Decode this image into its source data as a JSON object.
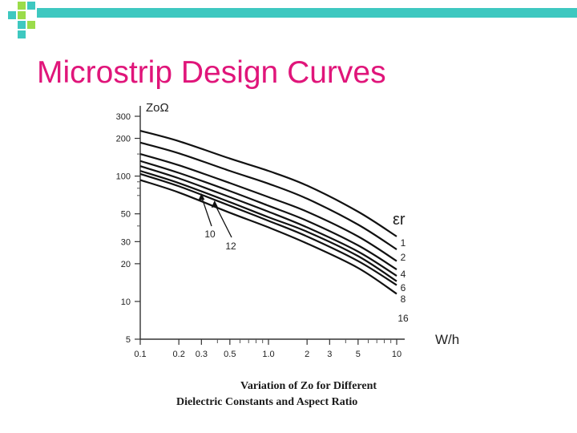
{
  "slide": {
    "title": "Microstrip Design Curves",
    "title_color": "#e0157a",
    "bar_color": "#3ec8c0",
    "deco_colors": [
      "#9bdc4a",
      "#3ec8c0"
    ]
  },
  "chart_data": {
    "type": "line",
    "x_axis_label": "W/h",
    "y_axis_label": "ZoΩ",
    "x_scale": "log",
    "y_scale": "log",
    "xlim": [
      0.1,
      10
    ],
    "ylim": [
      5,
      300
    ],
    "x_ticks": [
      {
        "value": 0.1,
        "label": "0.1"
      },
      {
        "value": 0.2,
        "label": "0.2"
      },
      {
        "value": 0.3,
        "label": "0.3"
      },
      {
        "value": 0.5,
        "label": "0.5"
      },
      {
        "value": 1.0,
        "label": "1.0"
      },
      {
        "value": 2,
        "label": "2"
      },
      {
        "value": 3,
        "label": "3"
      },
      {
        "value": 5,
        "label": "5"
      },
      {
        "value": 10,
        "label": "10"
      }
    ],
    "y_ticks": [
      {
        "value": 300,
        "label": "300"
      },
      {
        "value": 200,
        "label": "200"
      },
      {
        "value": 100,
        "label": "100"
      },
      {
        "value": 50,
        "label": "50"
      },
      {
        "value": 30,
        "label": "30"
      },
      {
        "value": 20,
        "label": "20"
      },
      {
        "value": 10,
        "label": "10"
      },
      {
        "value": 5,
        "label": "5"
      }
    ],
    "legend_title": "εr",
    "x": [
      0.1,
      0.2,
      0.5,
      1.0,
      2,
      5,
      10
    ],
    "series": [
      {
        "name": "1",
        "values": [
          230,
          190,
          138,
          110,
          84,
          52,
          33
        ]
      },
      {
        "name": "2",
        "values": [
          185,
          152,
          110,
          87,
          66,
          41,
          26
        ]
      },
      {
        "name": "4",
        "values": [
          150,
          122,
          88,
          68,
          52,
          33,
          21
        ]
      },
      {
        "name": "6",
        "values": [
          132,
          106,
          76,
          58,
          44,
          28,
          18
        ]
      },
      {
        "name": "8",
        "values": [
          120,
          96,
          68,
          52,
          39,
          25,
          16
        ]
      },
      {
        "name": "10",
        "values": [
          110,
          88,
          62,
          47,
          36,
          23,
          14.5
        ]
      },
      {
        "name": "12",
        "values": [
          104,
          83,
          58,
          44,
          33,
          21,
          13.5
        ]
      },
      {
        "name": "16",
        "values": [
          93,
          74,
          51,
          39,
          29,
          18.5,
          11.5
        ]
      }
    ],
    "line_color": "#111111",
    "caption_line1": "Variation of Zo for Different",
    "caption_line2": "Dielectric Constants and Aspect Ratio"
  }
}
